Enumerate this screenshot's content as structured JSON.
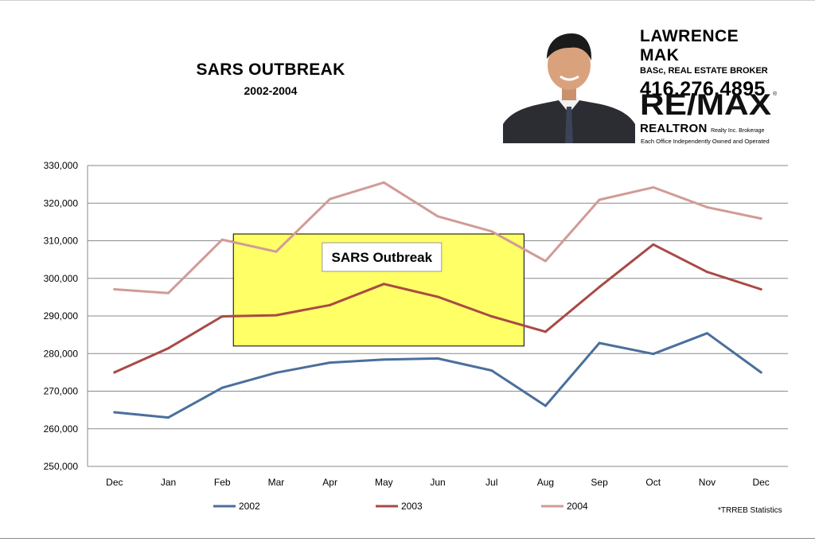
{
  "header": {
    "title": "SARS OUTBREAK",
    "subtitle": "2002-2004"
  },
  "agent": {
    "name": "LAWRENCE MAK",
    "credentials": "BASc, REAL ESTATE BROKER",
    "phone": "416.276.4895",
    "logo_text": "RE/MAX",
    "brokerage_name": "REALTRON",
    "brokerage_suffix": "Realty Inc. Brokerage",
    "office_note": "Each Office Independently Owned and Operated",
    "logo_color": "#111111",
    "photo_icon": "agent-portrait"
  },
  "chart_data": {
    "type": "line",
    "categories": [
      "Dec",
      "Jan",
      "Feb",
      "Mar",
      "Apr",
      "May",
      "Jun",
      "Jul",
      "Aug",
      "Sep",
      "Oct",
      "Nov",
      "Dec"
    ],
    "ylim": [
      250000,
      330000
    ],
    "yticks": [
      250000,
      260000,
      270000,
      280000,
      290000,
      300000,
      310000,
      320000,
      330000
    ],
    "ytick_labels": [
      "250,000",
      "260,000",
      "270,000",
      "280,000",
      "290,000",
      "300,000",
      "310,000",
      "320,000",
      "330,000"
    ],
    "grid": true,
    "legend_position": "bottom",
    "series": [
      {
        "name": "2002",
        "color": "#4a6f9c",
        "values": [
          264400,
          263000,
          270900,
          274900,
          277600,
          278400,
          278700,
          275500,
          266100,
          282800,
          279900,
          285400,
          275000
        ]
      },
      {
        "name": "2003",
        "color": "#a84a46",
        "values": [
          275000,
          281400,
          289900,
          290200,
          292900,
          298500,
          295100,
          289900,
          285800,
          297700,
          309000,
          301700,
          297100
        ]
      },
      {
        "name": "2004",
        "color": "#d19b97",
        "values": [
          297100,
          296100,
          310300,
          307100,
          321100,
          325500,
          316500,
          312500,
          304600,
          320900,
          324200,
          318900,
          315900
        ]
      }
    ],
    "highlight": {
      "label": "SARS Outbreak",
      "from_category": "Feb",
      "to_category": "Aug",
      "y_top": 311800,
      "y_bottom": 282000,
      "fill": "#ffff66"
    },
    "source_note": "*TRREB Statistics"
  }
}
